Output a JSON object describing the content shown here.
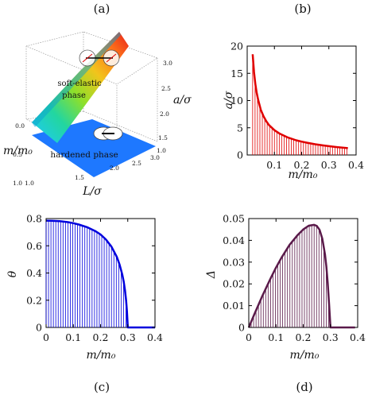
{
  "panel_labels": {
    "a": "(a)",
    "b": "(b)",
    "c": "(c)",
    "d": "(d)"
  },
  "colors": {
    "red": "#e00000",
    "blue": "#0000dd",
    "purple": "#5a1a4a",
    "plane": "#1e78ff",
    "axis": "#000000"
  },
  "panel_a": {
    "axis_labels": {
      "mass": "m/m₀",
      "length": "L/σ",
      "a": "a/σ"
    },
    "phase_labels": {
      "soft": "soft-elastic",
      "soft2": "phase",
      "hard": "hardened phase"
    },
    "mass_ticks": [
      "0.0",
      "0.5",
      "1.0"
    ],
    "length_ticks": [
      "1.0",
      "1.5",
      "2.0",
      "2.5",
      "3.0"
    ],
    "a_ticks": [
      "3.0",
      "2.5",
      "2.0",
      "1.5",
      "1.0"
    ]
  },
  "chart_data": [
    {
      "id": "b",
      "type": "line",
      "xlabel": "m/m₀",
      "ylabel": "a/σ",
      "xlim": [
        0,
        0.4
      ],
      "ylim": [
        0,
        20
      ],
      "xticks": [
        "0.1",
        "0.2",
        "0.3",
        "0.4"
      ],
      "yticks": [
        "0",
        "5",
        "10",
        "15",
        "20"
      ],
      "x": [
        0.02,
        0.025,
        0.03,
        0.035,
        0.04,
        0.05,
        0.06,
        0.07,
        0.08,
        0.1,
        0.12,
        0.15,
        0.18,
        0.2,
        0.22,
        0.25,
        0.28,
        0.3,
        0.33,
        0.35,
        0.37
      ],
      "y": [
        18.5,
        15.2,
        13.0,
        11.4,
        10.2,
        8.3,
        7.1,
        6.2,
        5.5,
        4.55,
        3.9,
        3.2,
        2.7,
        2.45,
        2.25,
        1.97,
        1.75,
        1.62,
        1.45,
        1.35,
        1.25
      ],
      "grid": false,
      "style": "curve with vertical hatching to the x-axis"
    },
    {
      "id": "c",
      "type": "line",
      "xlabel": "m/m₀",
      "ylabel": "θ",
      "xlim": [
        0,
        0.4
      ],
      "ylim": [
        0,
        0.8
      ],
      "xticks": [
        "0",
        "0.1",
        "0.2",
        "0.3",
        "0.4"
      ],
      "yticks": [
        "0",
        "0.2",
        "0.4",
        "0.6",
        "0.8"
      ],
      "x": [
        0,
        0.02,
        0.05,
        0.08,
        0.1,
        0.12,
        0.15,
        0.18,
        0.2,
        0.22,
        0.24,
        0.26,
        0.27,
        0.28,
        0.285,
        0.29,
        0.294,
        0.297,
        0.3,
        0.35,
        0.4
      ],
      "y": [
        0.785,
        0.784,
        0.781,
        0.774,
        0.766,
        0.756,
        0.737,
        0.709,
        0.683,
        0.646,
        0.594,
        0.517,
        0.461,
        0.387,
        0.338,
        0.271,
        0.196,
        0.121,
        0.0,
        0.0,
        0.0
      ],
      "grid": false,
      "style": "curve with vertical hatching to the x-axis"
    },
    {
      "id": "d",
      "type": "line",
      "xlabel": "m/m₀",
      "ylabel": "Δ",
      "xlim": [
        0,
        0.4
      ],
      "ylim": [
        0,
        0.05
      ],
      "xticks": [
        "0",
        "0.1",
        "0.2",
        "0.3",
        "0.4"
      ],
      "yticks": [
        "0",
        "0.01",
        "0.02",
        "0.03",
        "0.04",
        "0.05"
      ],
      "x": [
        0,
        0.02,
        0.05,
        0.08,
        0.1,
        0.12,
        0.15,
        0.18,
        0.2,
        0.22,
        0.24,
        0.25,
        0.26,
        0.27,
        0.28,
        0.285,
        0.29,
        0.295,
        0.3,
        0.35,
        0.39
      ],
      "y": [
        0.0,
        0.006,
        0.0145,
        0.0225,
        0.0275,
        0.032,
        0.038,
        0.0425,
        0.045,
        0.0467,
        0.0471,
        0.0466,
        0.0448,
        0.0408,
        0.0335,
        0.028,
        0.0205,
        0.011,
        0.0,
        0.0,
        0.0
      ],
      "grid": false,
      "style": "curve with vertical hatching to the x-axis"
    }
  ]
}
